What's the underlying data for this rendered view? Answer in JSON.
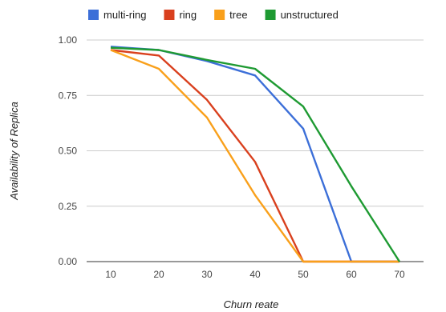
{
  "chart_data": {
    "type": "line",
    "title": "",
    "xlabel": "Churn reate",
    "ylabel": "Availability of Replica",
    "x": [
      10,
      20,
      30,
      40,
      50,
      60,
      70
    ],
    "x_ticks": [
      "10",
      "20",
      "30",
      "40",
      "50",
      "60",
      "70"
    ],
    "y_ticks": [
      "0.00",
      "0.25",
      "0.50",
      "0.75",
      "1.00"
    ],
    "ylim": [
      0,
      1
    ],
    "grid": "horizontal",
    "legend_position": "top",
    "series": [
      {
        "name": "multi-ring",
        "color": "#3c6fd8",
        "values": [
          0.97,
          0.955,
          0.905,
          0.84,
          0.6,
          0.0,
          0.0
        ]
      },
      {
        "name": "ring",
        "color": "#d9401e",
        "values": [
          0.955,
          0.93,
          0.73,
          0.45,
          0.0,
          0.0,
          0.0
        ]
      },
      {
        "name": "tree",
        "color": "#f9a01b",
        "values": [
          0.955,
          0.87,
          0.65,
          0.3,
          0.0,
          0.0,
          0.0
        ]
      },
      {
        "name": "unstructured",
        "color": "#1e9a32",
        "values": [
          0.965,
          0.955,
          0.91,
          0.87,
          0.7,
          0.34,
          0.0
        ]
      }
    ]
  }
}
